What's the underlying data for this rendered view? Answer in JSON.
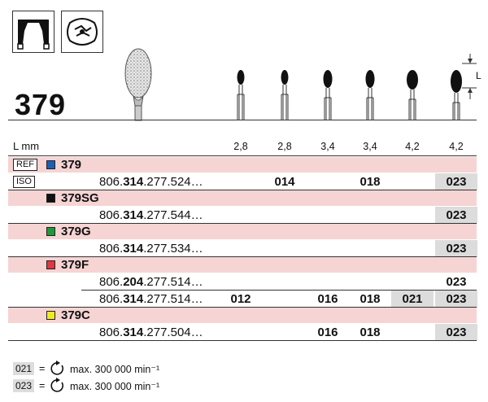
{
  "product": {
    "title": "379"
  },
  "header": {
    "lmm_label": "L mm",
    "sizes": [
      "2,8",
      "2,8",
      "3,4",
      "3,4",
      "4,2",
      "4,2"
    ],
    "dim_label": "L"
  },
  "tags": {
    "ref": "REF",
    "iso": "ISO"
  },
  "colors": {
    "blue": "#1e5fb4",
    "black": "#111111",
    "green": "#1f9a3a",
    "red": "#e0383f",
    "yellow": "#f2ea1e",
    "band": "#f6d4d4",
    "highlight": "#dcdcdc"
  },
  "groups": [
    {
      "ref": "379",
      "color": "blue",
      "rows": [
        {
          "code_pre": "806.",
          "code_bold": "314",
          "code_post": ".277.524…",
          "values": [
            "",
            "014",
            "",
            "018",
            "",
            "023"
          ],
          "highlight": [
            false,
            false,
            false,
            false,
            false,
            true
          ]
        }
      ]
    },
    {
      "ref": "379SG",
      "color": "black",
      "rows": [
        {
          "code_pre": "806.",
          "code_bold": "314",
          "code_post": ".277.544…",
          "values": [
            "",
            "",
            "",
            "",
            "",
            "023"
          ],
          "highlight": [
            false,
            false,
            false,
            false,
            false,
            true
          ]
        }
      ]
    },
    {
      "ref": "379G",
      "color": "green",
      "rows": [
        {
          "code_pre": "806.",
          "code_bold": "314",
          "code_post": ".277.534…",
          "values": [
            "",
            "",
            "",
            "",
            "",
            "023"
          ],
          "highlight": [
            false,
            false,
            false,
            false,
            false,
            true
          ]
        }
      ]
    },
    {
      "ref": "379F",
      "color": "red",
      "rows": [
        {
          "code_pre": "806.",
          "code_bold": "204",
          "code_post": ".277.514…",
          "values": [
            "",
            "",
            "",
            "",
            "",
            "023"
          ],
          "highlight": [
            false,
            false,
            false,
            false,
            false,
            false
          ]
        },
        {
          "code_pre": "806.",
          "code_bold": "314",
          "code_post": ".277.514…",
          "values": [
            "012",
            "",
            "016",
            "018",
            "021",
            "023"
          ],
          "highlight": [
            false,
            false,
            false,
            false,
            true,
            true
          ]
        }
      ]
    },
    {
      "ref": "379C",
      "color": "yellow",
      "rows": [
        {
          "code_pre": "806.",
          "code_bold": "314",
          "code_post": ".277.504…",
          "values": [
            "",
            "",
            "016",
            "018",
            "",
            "023"
          ],
          "highlight": [
            false,
            false,
            false,
            false,
            false,
            true
          ]
        }
      ]
    }
  ],
  "legend": [
    {
      "code": "021",
      "eq": "=",
      "text": "max. 300 000 min⁻¹",
      "icon": "rotation-speed-icon"
    },
    {
      "code": "023",
      "eq": "=",
      "text": "max. 300 000 min⁻¹",
      "icon": "rotation-speed-icon"
    }
  ]
}
